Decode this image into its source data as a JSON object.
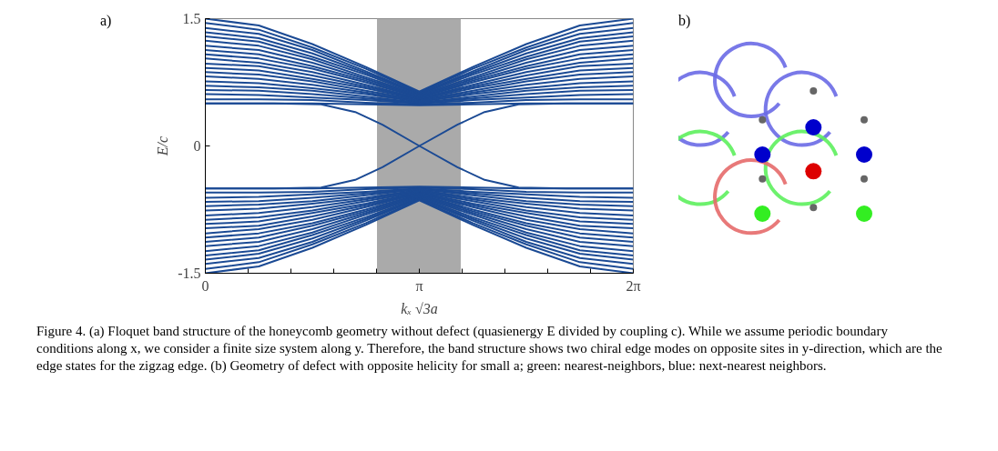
{
  "chart_data": [
    {
      "type": "line",
      "title": null,
      "xlabel": "kₓ √3a",
      "ylabel": "E/c",
      "annotations": [
        "a)",
        "Figure 4. (a) Floquet band structure of the honeycomb geometry without defect (quasienergy E divided by coupling c). While we assume periodic boundary conditions along x, we consider a finite size system along y. Therefore, the band structure shows two chiral edge modes on opposite sites in y-direction, which are the edge states for the zigzag edge. (b) Geometry of defect with opposite helicity for small a; green: nearest-neighbors, blue: next-nearest neighbors."
      ],
      "x": [
        0,
        0.785,
        1.571,
        2.356,
        3.142,
        3.927,
        4.712,
        5.498,
        6.283
      ],
      "xlim": [
        0,
        6.283
      ],
      "ylim": [
        -1.5,
        1.5
      ],
      "xticks": [
        0,
        {
          "value": 0.628,
          "label": null
        },
        {
          "value": 1.257,
          "label": null
        },
        {
          "value": 1.885,
          "label": null
        },
        {
          "value": 2.513,
          "label": null
        },
        {
          "value": 3.142,
          "label": "π"
        },
        {
          "value": 3.77,
          "label": null
        },
        {
          "value": 4.398,
          "label": null
        },
        {
          "value": 5.027,
          "label": null
        },
        {
          "value": 5.655,
          "label": null
        },
        {
          "value": 6.283,
          "label": "2π"
        }
      ],
      "yticks": [
        -1.5,
        0,
        1.5
      ],
      "bands": [
        {
          "axis": "x",
          "from": 2.52,
          "to": 3.75,
          "label": null,
          "color": "#aaaaaa"
        }
      ],
      "series": [
        {
          "color": "#1b4a94",
          "values": [
            0.5,
            0.5,
            0.5,
            0.49,
            0.48,
            0.49,
            0.5,
            0.5,
            0.5
          ]
        },
        {
          "color": "#1b4a94",
          "values": [
            0.55,
            0.55,
            0.54,
            0.51,
            0.49,
            0.51,
            0.54,
            0.55,
            0.55
          ]
        },
        {
          "color": "#1b4a94",
          "values": [
            0.61,
            0.6,
            0.57,
            0.54,
            0.5,
            0.54,
            0.57,
            0.6,
            0.61
          ]
        },
        {
          "color": "#1b4a94",
          "values": [
            0.66,
            0.65,
            0.61,
            0.56,
            0.51,
            0.56,
            0.61,
            0.65,
            0.66
          ]
        },
        {
          "color": "#1b4a94",
          "values": [
            0.71,
            0.69,
            0.65,
            0.58,
            0.51,
            0.58,
            0.65,
            0.69,
            0.71
          ]
        },
        {
          "color": "#1b4a94",
          "values": [
            0.76,
            0.74,
            0.68,
            0.61,
            0.52,
            0.61,
            0.68,
            0.74,
            0.76
          ]
        },
        {
          "color": "#1b4a94",
          "values": [
            0.82,
            0.79,
            0.72,
            0.63,
            0.53,
            0.63,
            0.72,
            0.79,
            0.82
          ]
        },
        {
          "color": "#1b4a94",
          "values": [
            0.87,
            0.84,
            0.76,
            0.65,
            0.54,
            0.65,
            0.76,
            0.84,
            0.87
          ]
        },
        {
          "color": "#1b4a94",
          "values": [
            0.92,
            0.89,
            0.79,
            0.68,
            0.55,
            0.68,
            0.79,
            0.89,
            0.92
          ]
        },
        {
          "color": "#1b4a94",
          "values": [
            0.97,
            0.94,
            0.83,
            0.7,
            0.56,
            0.7,
            0.83,
            0.94,
            0.97
          ]
        },
        {
          "color": "#1b4a94",
          "values": [
            1.03,
            0.98,
            0.87,
            0.72,
            0.56,
            0.72,
            0.87,
            0.98,
            1.03
          ]
        },
        {
          "color": "#1b4a94",
          "values": [
            1.08,
            1.03,
            0.91,
            0.75,
            0.57,
            0.75,
            0.91,
            1.03,
            1.08
          ]
        },
        {
          "color": "#1b4a94",
          "values": [
            1.13,
            1.08,
            0.94,
            0.77,
            0.58,
            0.77,
            0.94,
            1.08,
            1.13
          ]
        },
        {
          "color": "#1b4a94",
          "values": [
            1.18,
            1.13,
            0.98,
            0.79,
            0.59,
            0.79,
            0.98,
            1.13,
            1.18
          ]
        },
        {
          "color": "#1b4a94",
          "values": [
            1.24,
            1.18,
            1.02,
            0.81,
            0.6,
            0.81,
            1.02,
            1.18,
            1.24
          ]
        },
        {
          "color": "#1b4a94",
          "values": [
            1.29,
            1.23,
            1.05,
            0.84,
            0.61,
            0.84,
            1.05,
            1.23,
            1.29
          ]
        },
        {
          "color": "#1b4a94",
          "values": [
            1.34,
            1.27,
            1.09,
            0.86,
            0.62,
            0.86,
            1.09,
            1.27,
            1.34
          ]
        },
        {
          "color": "#1b4a94",
          "values": [
            1.39,
            1.32,
            1.13,
            0.88,
            0.62,
            0.88,
            1.13,
            1.32,
            1.39
          ]
        },
        {
          "color": "#1b4a94",
          "values": [
            1.45,
            1.37,
            1.16,
            0.91,
            0.63,
            0.91,
            1.16,
            1.37,
            1.45
          ]
        },
        {
          "color": "#1b4a94",
          "values": [
            1.5,
            1.42,
            1.2,
            0.93,
            0.64,
            0.93,
            1.2,
            1.42,
            1.5
          ]
        },
        {
          "color": "#1b4a94",
          "values": [
            -0.5,
            -0.5,
            -0.5,
            -0.49,
            -0.48,
            -0.49,
            -0.5,
            -0.5,
            -0.5
          ]
        },
        {
          "color": "#1b4a94",
          "values": [
            -0.55,
            -0.55,
            -0.54,
            -0.51,
            -0.49,
            -0.51,
            -0.54,
            -0.55,
            -0.55
          ]
        },
        {
          "color": "#1b4a94",
          "values": [
            -0.61,
            -0.6,
            -0.57,
            -0.54,
            -0.5,
            -0.54,
            -0.57,
            -0.6,
            -0.61
          ]
        },
        {
          "color": "#1b4a94",
          "values": [
            -0.66,
            -0.65,
            -0.61,
            -0.56,
            -0.51,
            -0.56,
            -0.61,
            -0.65,
            -0.66
          ]
        },
        {
          "color": "#1b4a94",
          "values": [
            -0.71,
            -0.69,
            -0.65,
            -0.58,
            -0.51,
            -0.58,
            -0.65,
            -0.69,
            -0.71
          ]
        },
        {
          "color": "#1b4a94",
          "values": [
            -0.76,
            -0.74,
            -0.68,
            -0.61,
            -0.52,
            -0.61,
            -0.68,
            -0.74,
            -0.76
          ]
        },
        {
          "color": "#1b4a94",
          "values": [
            -0.82,
            -0.79,
            -0.72,
            -0.63,
            -0.53,
            -0.63,
            -0.72,
            -0.79,
            -0.82
          ]
        },
        {
          "color": "#1b4a94",
          "values": [
            -0.87,
            -0.84,
            -0.76,
            -0.65,
            -0.54,
            -0.65,
            -0.76,
            -0.84,
            -0.87
          ]
        },
        {
          "color": "#1b4a94",
          "values": [
            -0.92,
            -0.89,
            -0.79,
            -0.68,
            -0.55,
            -0.68,
            -0.79,
            -0.89,
            -0.92
          ]
        },
        {
          "color": "#1b4a94",
          "values": [
            -0.97,
            -0.94,
            -0.83,
            -0.7,
            -0.56,
            -0.7,
            -0.83,
            -0.94,
            -0.97
          ]
        },
        {
          "color": "#1b4a94",
          "values": [
            -1.03,
            -0.98,
            -0.87,
            -0.72,
            -0.56,
            -0.72,
            -0.87,
            -0.98,
            -1.03
          ]
        },
        {
          "color": "#1b4a94",
          "values": [
            -1.08,
            -1.03,
            -0.91,
            -0.75,
            -0.57,
            -0.75,
            -0.91,
            -1.03,
            -1.08
          ]
        },
        {
          "color": "#1b4a94",
          "values": [
            -1.13,
            -1.08,
            -0.94,
            -0.77,
            -0.58,
            -0.77,
            -0.94,
            -1.08,
            -1.13
          ]
        },
        {
          "color": "#1b4a94",
          "values": [
            -1.18,
            -1.13,
            -0.98,
            -0.79,
            -0.59,
            -0.79,
            -0.98,
            -1.13,
            -1.18
          ]
        },
        {
          "color": "#1b4a94",
          "values": [
            -1.24,
            -1.18,
            -1.02,
            -0.81,
            -0.6,
            -0.81,
            -1.02,
            -1.18,
            -1.24
          ]
        },
        {
          "color": "#1b4a94",
          "values": [
            -1.29,
            -1.23,
            -1.05,
            -0.84,
            -0.61,
            -0.84,
            -1.05,
            -1.23,
            -1.29
          ]
        },
        {
          "color": "#1b4a94",
          "values": [
            -1.34,
            -1.27,
            -1.09,
            -0.86,
            -0.62,
            -0.86,
            -1.09,
            -1.27,
            -1.34
          ]
        },
        {
          "color": "#1b4a94",
          "values": [
            -1.39,
            -1.32,
            -1.13,
            -0.88,
            -0.62,
            -0.88,
            -1.13,
            -1.32,
            -1.39
          ]
        },
        {
          "color": "#1b4a94",
          "values": [
            -1.45,
            -1.37,
            -1.16,
            -0.91,
            -0.63,
            -0.91,
            -1.16,
            -1.37,
            -1.45
          ]
        },
        {
          "color": "#1b4a94",
          "values": [
            -1.5,
            -1.42,
            -1.2,
            -0.93,
            -0.64,
            -0.93,
            -1.2,
            -1.42,
            -1.5
          ]
        },
        {
          "color": "#1b4a94",
          "x": [
            0,
            1.0,
            1.7,
            2.2,
            2.6,
            3.142,
            3.7,
            4.1,
            4.6,
            5.3,
            6.283
          ],
          "values": [
            0.5,
            0.5,
            0.49,
            0.4,
            0.25,
            0,
            -0.25,
            -0.4,
            -0.49,
            -0.5,
            -0.5
          ]
        },
        {
          "color": "#1b4a94",
          "x": [
            0,
            1.0,
            1.7,
            2.2,
            2.6,
            3.142,
            3.7,
            4.1,
            4.6,
            5.3,
            6.283
          ],
          "values": [
            -0.5,
            -0.5,
            -0.49,
            -0.4,
            -0.25,
            0,
            0.25,
            0.4,
            0.49,
            0.5,
            0.5
          ]
        }
      ]
    },
    {
      "type": "other",
      "annotations": [
        "b)"
      ]
    }
  ]
}
